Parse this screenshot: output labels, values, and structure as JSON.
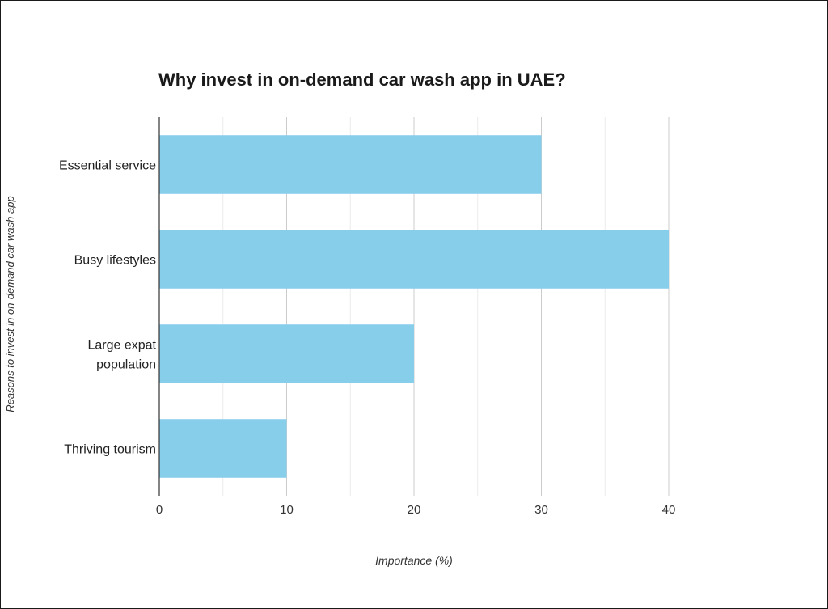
{
  "chart_data": {
    "type": "bar",
    "orientation": "horizontal",
    "title": "Why invest in on-demand car wash app in UAE?",
    "xlabel": "Importance (%)",
    "ylabel": "Reasons to invest in on-demand car wash app",
    "categories": [
      [
        "Essential service"
      ],
      [
        "Busy lifestyles"
      ],
      [
        "Large expat",
        "population"
      ],
      [
        "Thriving tourism"
      ]
    ],
    "values": [
      30,
      40,
      20,
      10
    ],
    "xlim": [
      0,
      40
    ],
    "xticks": [
      0,
      10,
      20,
      30,
      40
    ],
    "minor_gridlines": [
      5,
      15,
      25,
      35
    ],
    "grid": true,
    "legend": "none",
    "colors": {
      "bar": "#87ceeb",
      "grid_major": "#cccccc",
      "grid_minor": "#ebebeb",
      "axis": "#333333"
    }
  }
}
